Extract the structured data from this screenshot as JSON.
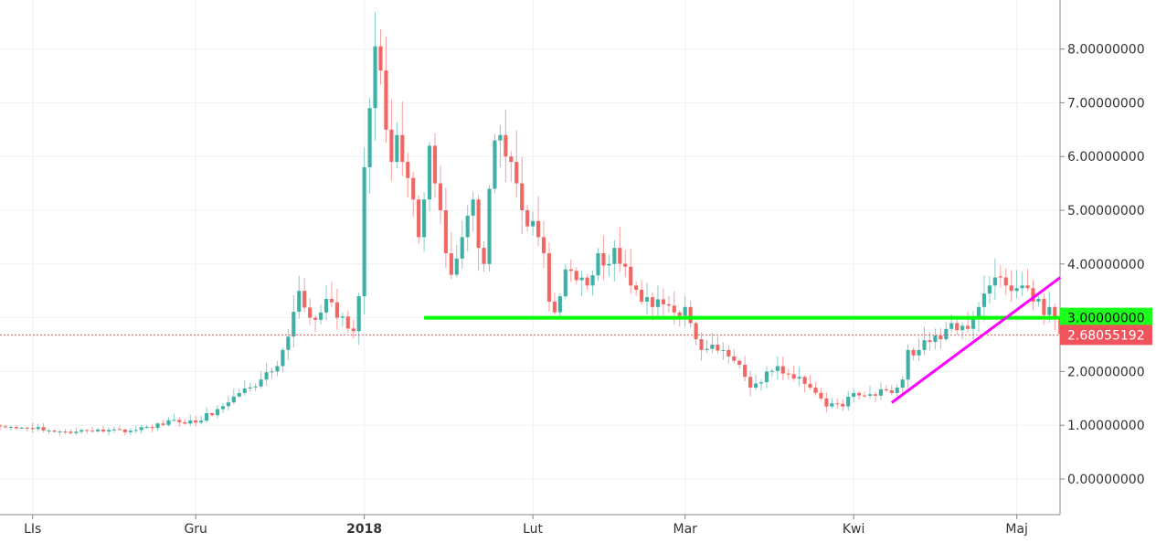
{
  "chart_data": {
    "type": "candlestick",
    "y_axis": {
      "position": "right",
      "ylim": [
        -0.6,
        9.2
      ],
      "ticks": [
        "0.00000000",
        "1.00000000",
        "2.00000000",
        "3.00000000",
        "4.00000000",
        "5.00000000",
        "6.00000000",
        "7.00000000",
        "8.00000000"
      ],
      "tick_values": [
        0,
        1,
        2,
        3,
        4,
        5,
        6,
        7,
        8
      ]
    },
    "x_axis": {
      "ticks": [
        {
          "label": "LIs",
          "index": 6,
          "bold": false
        },
        {
          "label": "Gru",
          "index": 36,
          "bold": false
        },
        {
          "label": "2018",
          "index": 67,
          "bold": true
        },
        {
          "label": "Lut",
          "index": 98,
          "bold": false
        },
        {
          "label": "Mar",
          "index": 126,
          "bold": false
        },
        {
          "label": "Kwi",
          "index": 157,
          "bold": false
        },
        {
          "label": "Maj",
          "index": 187,
          "bold": false
        }
      ]
    },
    "current_price": {
      "value": 2.68055192,
      "label": "2.68055192",
      "color": "#f0535c"
    },
    "level_tag": {
      "value": 3.0,
      "label": "3.00000000",
      "color": "#1cff1c"
    },
    "grid": true,
    "colors": {
      "up": "#26a69a",
      "down": "#ef5350",
      "support": "#00ff00",
      "trendline": "#ff00ff"
    },
    "annotations": [
      {
        "type": "horizontal-line",
        "color": "#00ff00",
        "y": 3.0,
        "x_start_index": 78,
        "x_end_index": 202
      },
      {
        "type": "trendline",
        "color": "#ff00ff",
        "from": {
          "index": 164,
          "y": 1.42
        },
        "to": {
          "index": 195,
          "y": 3.75
        }
      }
    ],
    "anchors": [
      [
        0,
        0.98
      ],
      [
        6,
        0.93
      ],
      [
        12,
        0.88
      ],
      [
        18,
        0.92
      ],
      [
        24,
        0.9
      ],
      [
        28,
        0.95
      ],
      [
        32,
        1.1
      ],
      [
        36,
        1.05
      ],
      [
        40,
        1.3
      ],
      [
        44,
        1.6
      ],
      [
        48,
        1.85
      ],
      [
        51,
        2.1
      ],
      [
        53,
        2.65
      ],
      [
        55,
        3.5
      ],
      [
        57,
        3.0
      ],
      [
        60,
        3.35
      ],
      [
        62,
        3.0
      ],
      [
        64,
        2.8
      ],
      [
        65,
        2.75
      ],
      [
        66,
        3.4
      ],
      [
        67,
        5.8
      ],
      [
        68,
        6.9
      ],
      [
        69,
        8.05
      ],
      [
        70,
        7.6
      ],
      [
        71,
        6.5
      ],
      [
        72,
        5.9
      ],
      [
        73,
        6.4
      ],
      [
        74,
        5.9
      ],
      [
        75,
        5.6
      ],
      [
        76,
        5.2
      ],
      [
        77,
        4.5
      ],
      [
        78,
        5.2
      ],
      [
        79,
        6.2
      ],
      [
        80,
        5.5
      ],
      [
        81,
        5.0
      ],
      [
        82,
        4.2
      ],
      [
        83,
        3.8
      ],
      [
        84,
        4.1
      ],
      [
        85,
        4.5
      ],
      [
        86,
        4.9
      ],
      [
        87,
        5.2
      ],
      [
        88,
        4.3
      ],
      [
        89,
        4.0
      ],
      [
        90,
        5.4
      ],
      [
        91,
        6.3
      ],
      [
        92,
        6.4
      ],
      [
        93,
        6.0
      ],
      [
        94,
        5.9
      ],
      [
        95,
        5.5
      ],
      [
        96,
        5.0
      ],
      [
        97,
        4.7
      ],
      [
        98,
        4.8
      ],
      [
        99,
        4.5
      ],
      [
        100,
        4.2
      ],
      [
        101,
        3.3
      ],
      [
        102,
        3.1
      ],
      [
        103,
        3.4
      ],
      [
        104,
        3.9
      ],
      [
        106,
        3.7
      ],
      [
        108,
        3.6
      ],
      [
        110,
        4.2
      ],
      [
        112,
        4.0
      ],
      [
        113,
        4.3
      ],
      [
        115,
        3.95
      ],
      [
        116,
        3.6
      ],
      [
        118,
        3.3
      ],
      [
        120,
        3.2
      ],
      [
        122,
        3.25
      ],
      [
        124,
        3.1
      ],
      [
        126,
        3.2
      ],
      [
        127,
        2.9
      ],
      [
        128,
        2.6
      ],
      [
        129,
        2.4
      ],
      [
        131,
        2.5
      ],
      [
        133,
        2.4
      ],
      [
        135,
        2.2
      ],
      [
        137,
        1.9
      ],
      [
        138,
        1.7
      ],
      [
        140,
        1.8
      ],
      [
        141,
        2.0
      ],
      [
        143,
        2.1
      ],
      [
        145,
        1.95
      ],
      [
        147,
        1.9
      ],
      [
        149,
        1.7
      ],
      [
        151,
        1.5
      ],
      [
        152,
        1.35
      ],
      [
        154,
        1.4
      ],
      [
        155,
        1.35
      ],
      [
        157,
        1.6
      ],
      [
        159,
        1.55
      ],
      [
        161,
        1.55
      ],
      [
        163,
        1.65
      ],
      [
        165,
        1.7
      ],
      [
        166,
        1.85
      ],
      [
        167,
        2.4
      ],
      [
        168,
        2.3
      ],
      [
        169,
        2.4
      ],
      [
        171,
        2.55
      ],
      [
        173,
        2.6
      ],
      [
        175,
        2.9
      ],
      [
        177,
        2.85
      ],
      [
        179,
        3.0
      ],
      [
        180,
        3.2
      ],
      [
        181,
        3.45
      ],
      [
        182,
        3.6
      ],
      [
        183,
        3.75
      ],
      [
        184,
        3.75
      ],
      [
        185,
        3.6
      ],
      [
        186,
        3.5
      ],
      [
        187,
        3.55
      ],
      [
        188,
        3.6
      ],
      [
        189,
        3.55
      ],
      [
        190,
        3.3
      ],
      [
        191,
        3.35
      ],
      [
        192,
        3.05
      ],
      [
        193,
        3.2
      ],
      [
        194,
        3.0
      ],
      [
        195,
        2.7
      ],
      [
        196,
        2.68
      ]
    ]
  }
}
